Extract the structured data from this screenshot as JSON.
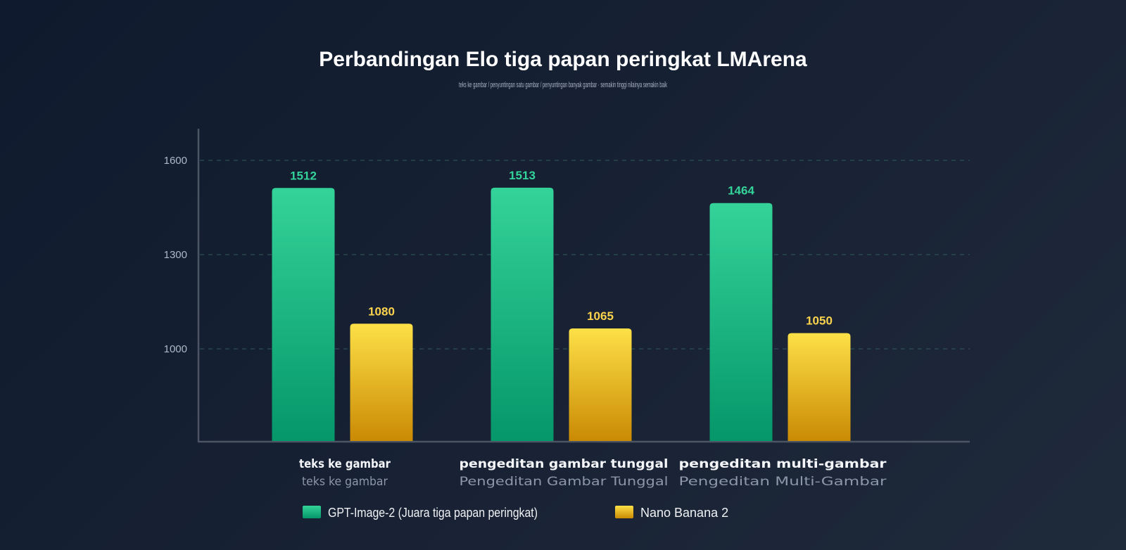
{
  "chart_data": {
    "type": "bar",
    "title": "Perbandingan Elo tiga papan peringkat LMArena",
    "subtitle": "teks ke gambar / penyuntingan satu gambar / penyuntingan banyak gambar · semakin tinggi nilainya semakin baik",
    "categories": [
      "teks ke gambar",
      "pengeditan gambar tunggal",
      "pengeditan multi-gambar"
    ],
    "categories_secondary": [
      "teks ke gambar",
      "Pengeditan Gambar Tunggal",
      "Pengeditan Multi-Gambar"
    ],
    "series": [
      {
        "name": "GPT-Image-2 (Juara tiga papan peringkat)",
        "values": [
          1512,
          1513,
          1464
        ],
        "color": "#10b981"
      },
      {
        "name": "Nano Banana 2",
        "values": [
          1080,
          1065,
          1050
        ],
        "color": "#fbbf24"
      }
    ],
    "yticks": [
      1000,
      1300,
      1600
    ],
    "xlabel": "",
    "ylabel": "",
    "legend": "bottom-center",
    "grid": true
  },
  "colors": {
    "series_a_top": "#34d399",
    "series_a_bottom": "#059669",
    "series_b_top": "#fde047",
    "series_b_bottom": "#ca8a04",
    "grid": "#2f5a55",
    "axis": "#4b5563"
  }
}
